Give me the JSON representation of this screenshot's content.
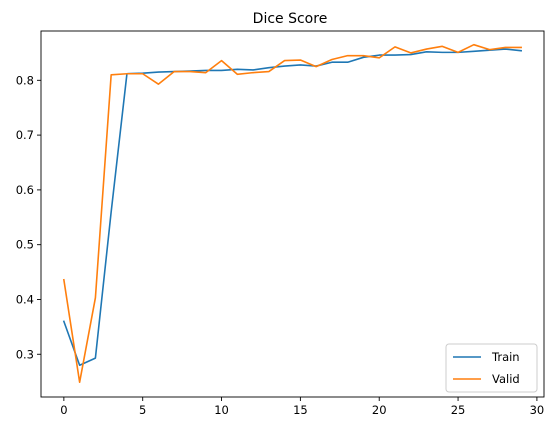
{
  "chart_data": {
    "type": "line",
    "title": "Dice Score",
    "xlabel": "",
    "ylabel": "",
    "xlim": [
      -1.45,
      30.45
    ],
    "ylim": [
      0.222,
      0.89
    ],
    "xticks": [
      0,
      5,
      10,
      15,
      20,
      25,
      30
    ],
    "yticks": [
      0.3,
      0.4,
      0.5,
      0.6,
      0.7,
      0.8
    ],
    "x": [
      0,
      1,
      2,
      3,
      4,
      5,
      6,
      7,
      8,
      9,
      10,
      11,
      12,
      13,
      14,
      15,
      16,
      17,
      18,
      19,
      20,
      21,
      22,
      23,
      24,
      25,
      26,
      27,
      28,
      29
    ],
    "series": [
      {
        "name": "Train",
        "color": "#1f77b4",
        "values": [
          0.36,
          0.28,
          0.293,
          0.56,
          0.812,
          0.813,
          0.815,
          0.816,
          0.817,
          0.818,
          0.818,
          0.82,
          0.819,
          0.823,
          0.826,
          0.828,
          0.826,
          0.833,
          0.833,
          0.842,
          0.846,
          0.846,
          0.847,
          0.852,
          0.851,
          0.851,
          0.853,
          0.855,
          0.857,
          0.854
        ]
      },
      {
        "name": "Valid",
        "color": "#ff7f0e",
        "values": [
          0.436,
          0.249,
          0.403,
          0.81,
          0.812,
          0.812,
          0.793,
          0.816,
          0.816,
          0.814,
          0.836,
          0.811,
          0.814,
          0.816,
          0.836,
          0.837,
          0.825,
          0.838,
          0.845,
          0.845,
          0.841,
          0.861,
          0.85,
          0.857,
          0.862,
          0.851,
          0.865,
          0.856,
          0.86,
          0.86
        ]
      }
    ],
    "legend_position": "lower-right",
    "grid": false
  }
}
